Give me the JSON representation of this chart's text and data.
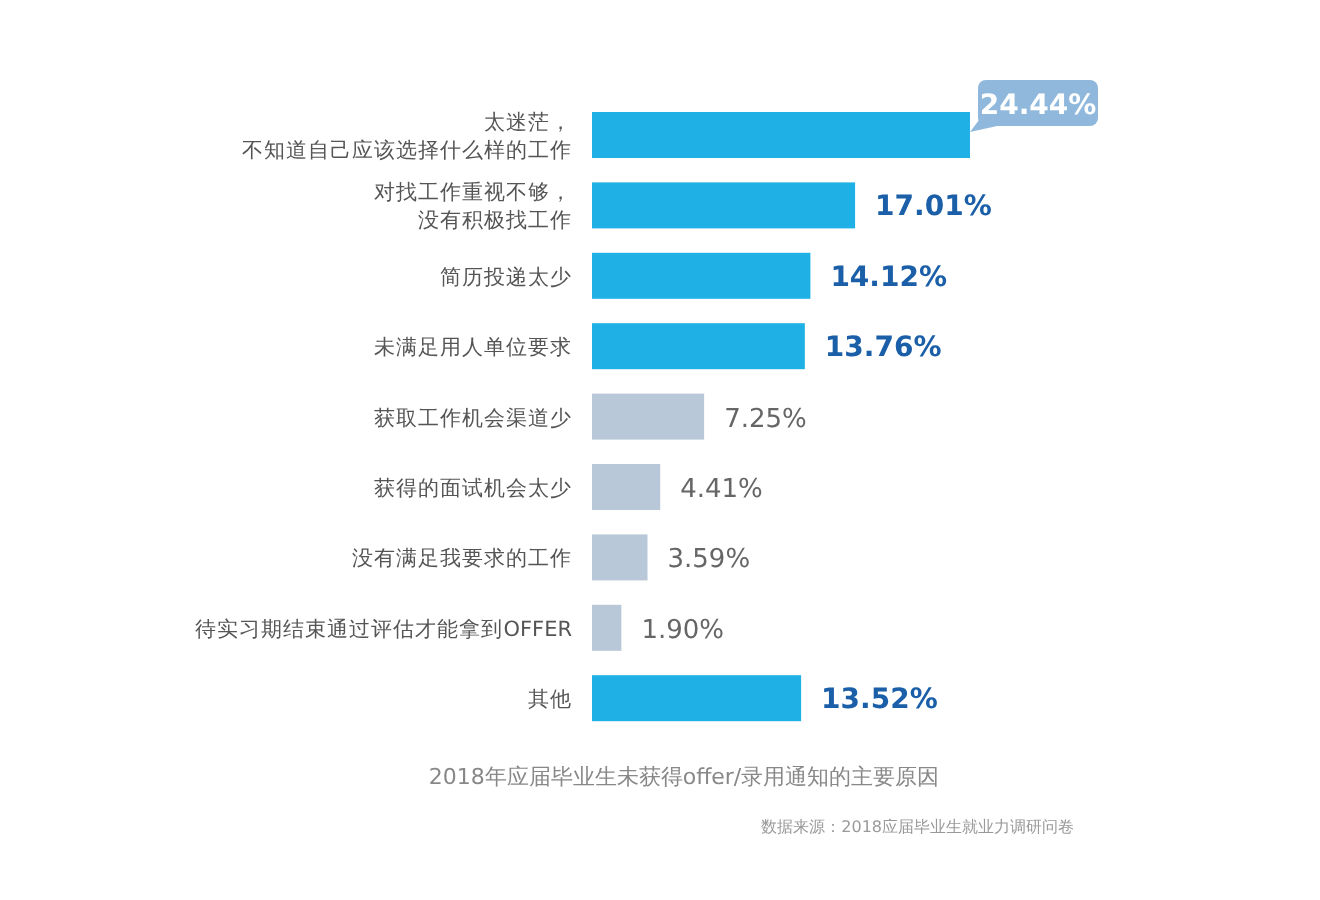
{
  "chart_data": {
    "type": "bar",
    "orientation": "horizontal",
    "title": "2018年应届毕业生未获得offer/录用通知的主要原因",
    "categories": [
      "太迷茫，不知道自己应该选择什么样的工作",
      "对找工作重视不够，没有积极找工作",
      "简历投递太少",
      "未满足用人单位要求",
      "获取工作机会渠道少",
      "获得的面试机会太少",
      "没有满足我要求的工作",
      "待实习期结束通过评估才能拿到OFFER",
      "其他"
    ],
    "values": [
      24.44,
      17.01,
      14.12,
      13.76,
      7.25,
      4.41,
      3.59,
      1.9,
      13.52
    ],
    "value_labels": [
      "24.44%",
      "17.01%",
      "14.12%",
      "13.76%",
      "7.25%",
      "4.41%",
      "3.59%",
      "1.90%",
      "13.52%"
    ],
    "colors": [
      "#1fb0e6",
      "#1fb0e6",
      "#1fb0e6",
      "#1fb0e6",
      "#b8c8d8",
      "#b8c8d8",
      "#b8c8d8",
      "#b8c8d8",
      "#1fb0e6"
    ],
    "annotations": [
      "数据来源：2018应届毕业生就业力调研问卷"
    ]
  }
}
